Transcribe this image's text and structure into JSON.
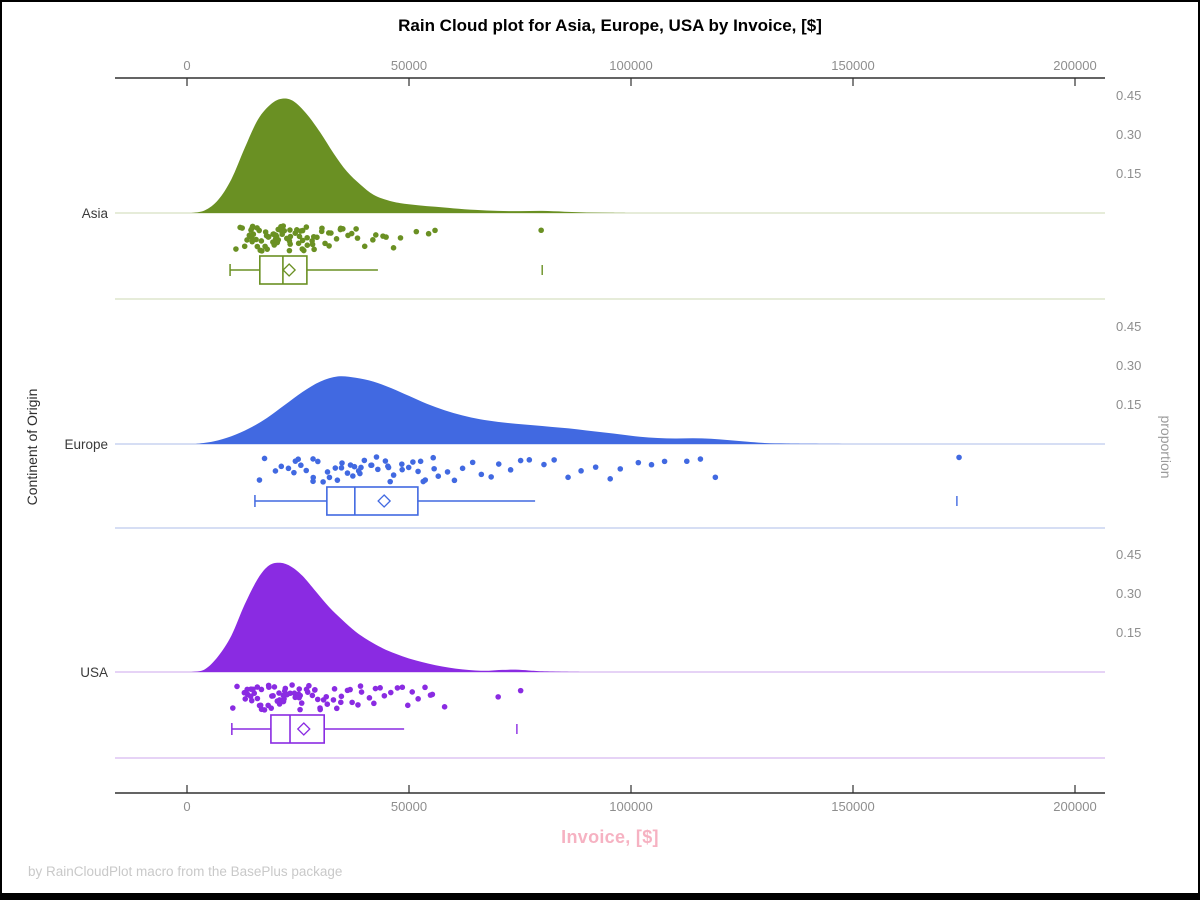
{
  "chart_data": {
    "type": "raincloud",
    "title": "Rain Cloud plot for Asia, Europe, USA by Invoice, [$]",
    "footer": "by RainCloudPlot macro from the BasePlus package",
    "x_axis": {
      "label": "Invoice, [$]",
      "label_color": "#f6b2c2",
      "ticks": [
        0,
        50000,
        100000,
        150000,
        200000
      ],
      "min": -16200,
      "max": 206700,
      "axis_position": "top and bottom"
    },
    "y_axis_left": {
      "label": "Continent of Origin",
      "categories": [
        "Asia",
        "Europe",
        "USA"
      ]
    },
    "y_axis_right": {
      "label": "proportion",
      "tick_labels": [
        "0.15",
        "0.30",
        "0.45"
      ],
      "tick_values": [
        0.15,
        0.3,
        0.45
      ]
    },
    "style_colors": {
      "axis_line": "#303030",
      "tick_text": "#8e8e8e",
      "category_text": "#3a3a3a",
      "footer_text": "#c9c9c9"
    },
    "groups": [
      {
        "name": "Asia",
        "color": "#6a9023",
        "light_color": "#d8e0c2",
        "density": [
          [
            1000,
            0
          ],
          [
            4000,
            0.01
          ],
          [
            7000,
            0.05
          ],
          [
            10000,
            0.13
          ],
          [
            13000,
            0.25
          ],
          [
            16000,
            0.36
          ],
          [
            19000,
            0.42
          ],
          [
            21500,
            0.44
          ],
          [
            24000,
            0.43
          ],
          [
            27000,
            0.38
          ],
          [
            30000,
            0.31
          ],
          [
            33000,
            0.23
          ],
          [
            36000,
            0.16
          ],
          [
            39000,
            0.11
          ],
          [
            42000,
            0.07
          ],
          [
            45000,
            0.05
          ],
          [
            48000,
            0.038
          ],
          [
            52000,
            0.03
          ],
          [
            56000,
            0.024
          ],
          [
            60000,
            0.018
          ],
          [
            65000,
            0.012
          ],
          [
            70000,
            0.008
          ],
          [
            75000,
            0.007
          ],
          [
            80000,
            0.008
          ],
          [
            85000,
            0.005
          ],
          [
            90000,
            0.002
          ],
          [
            95000,
            0.001
          ],
          [
            100000,
            0
          ]
        ],
        "box": {
          "low": 9700,
          "q1": 16400,
          "median": 21600,
          "mean": 23000,
          "q3": 27000,
          "high": 43000,
          "outliers": [
            80000
          ]
        },
        "rain": [
          11200,
          12500,
          13100,
          13800,
          14200,
          14600,
          15000,
          15300,
          15700,
          16100,
          16400,
          16800,
          17200,
          17500,
          17900,
          18200,
          18600,
          19000,
          19300,
          19700,
          20100,
          20400,
          20800,
          21200,
          21500,
          21900,
          22300,
          22700,
          23100,
          23500,
          23900,
          24300,
          24800,
          25200,
          25700,
          26100,
          26600,
          27100,
          27700,
          28300,
          28900,
          29500,
          30200,
          31000,
          31800,
          32700,
          33600,
          34600,
          35700,
          37000,
          38400,
          40000,
          41800,
          43800,
          46000,
          48500,
          51300,
          54500,
          56500,
          80200,
          12800,
          13500,
          14400,
          15100,
          15900,
          16600,
          17300,
          18000,
          18800,
          19500,
          20300,
          21000,
          21700,
          22500,
          23300,
          24100,
          25000,
          25900,
          26800,
          27900,
          29000,
          30500,
          32200,
          34000,
          36500,
          39000,
          42500,
          45000
        ]
      },
      {
        "name": "Europe",
        "color": "#4169e1",
        "light_color": "#bdc9ee",
        "density": [
          [
            2000,
            0
          ],
          [
            6000,
            0.01
          ],
          [
            10000,
            0.03
          ],
          [
            14000,
            0.06
          ],
          [
            18000,
            0.1
          ],
          [
            22000,
            0.15
          ],
          [
            26000,
            0.2
          ],
          [
            30000,
            0.24
          ],
          [
            34000,
            0.26
          ],
          [
            38000,
            0.255
          ],
          [
            42000,
            0.24
          ],
          [
            46000,
            0.215
          ],
          [
            50000,
            0.185
          ],
          [
            54000,
            0.155
          ],
          [
            58000,
            0.13
          ],
          [
            62000,
            0.11
          ],
          [
            66000,
            0.095
          ],
          [
            70000,
            0.085
          ],
          [
            74000,
            0.078
          ],
          [
            78000,
            0.072
          ],
          [
            82000,
            0.066
          ],
          [
            86000,
            0.06
          ],
          [
            90000,
            0.052
          ],
          [
            94000,
            0.044
          ],
          [
            98000,
            0.036
          ],
          [
            102000,
            0.028
          ],
          [
            106000,
            0.023
          ],
          [
            110000,
            0.021
          ],
          [
            114000,
            0.022
          ],
          [
            118000,
            0.02
          ],
          [
            122000,
            0.015
          ],
          [
            126000,
            0.009
          ],
          [
            130000,
            0.004
          ],
          [
            135000,
            0.002
          ],
          [
            140000,
            0.001
          ],
          [
            150000,
            0
          ]
        ],
        "box": {
          "low": 15300,
          "q1": 31500,
          "median": 37800,
          "mean": 44400,
          "q3": 52000,
          "high": 78400,
          "outliers": [
            173400
          ]
        },
        "rain": [
          16500,
          18000,
          19500,
          21000,
          22500,
          24000,
          25000,
          26000,
          27000,
          28000,
          29000,
          30000,
          31000,
          32000,
          33000,
          34000,
          35000,
          35800,
          36600,
          37400,
          38200,
          39000,
          39800,
          40600,
          41500,
          42400,
          43300,
          44200,
          45200,
          46200,
          47200,
          48300,
          49400,
          50500,
          51700,
          53000,
          54300,
          55700,
          57200,
          58800,
          60500,
          62300,
          64200,
          66200,
          68300,
          70500,
          72800,
          75200,
          77700,
          80300,
          83000,
          85800,
          88700,
          91700,
          94800,
          98000,
          101300,
          104700,
          108200,
          113000,
          116000,
          119500,
          173500,
          25500,
          28500,
          31500,
          34500,
          37800,
          41000,
          44700,
          48800,
          52500,
          56000
        ]
      },
      {
        "name": "USA",
        "color": "#8a2be2",
        "light_color": "#d7b9f0",
        "density": [
          [
            1000,
            0
          ],
          [
            4000,
            0.01
          ],
          [
            7000,
            0.06
          ],
          [
            10000,
            0.14
          ],
          [
            13000,
            0.26
          ],
          [
            16000,
            0.36
          ],
          [
            18500,
            0.41
          ],
          [
            21000,
            0.42
          ],
          [
            23500,
            0.405
          ],
          [
            26000,
            0.37
          ],
          [
            29000,
            0.31
          ],
          [
            32000,
            0.25
          ],
          [
            35000,
            0.2
          ],
          [
            38000,
            0.155
          ],
          [
            41000,
            0.12
          ],
          [
            44000,
            0.092
          ],
          [
            47000,
            0.07
          ],
          [
            50000,
            0.052
          ],
          [
            53000,
            0.038
          ],
          [
            56000,
            0.026
          ],
          [
            59000,
            0.017
          ],
          [
            62000,
            0.01
          ],
          [
            65000,
            0.006
          ],
          [
            68000,
            0.005
          ],
          [
            71000,
            0.008
          ],
          [
            74000,
            0.009
          ],
          [
            77000,
            0.006
          ],
          [
            80000,
            0.003
          ],
          [
            85000,
            0.001
          ],
          [
            90000,
            0
          ]
        ],
        "box": {
          "low": 10100,
          "q1": 18900,
          "median": 23200,
          "mean": 26300,
          "q3": 30900,
          "high": 48900,
          "outliers": [
            74300
          ]
        },
        "rain": [
          10500,
          11800,
          12700,
          13400,
          14000,
          14500,
          15000,
          15500,
          16000,
          16400,
          16900,
          17300,
          17800,
          18200,
          18700,
          19100,
          19600,
          20000,
          20500,
          20900,
          21400,
          21800,
          22300,
          22800,
          23300,
          23800,
          24300,
          24800,
          25300,
          25900,
          26500,
          27100,
          27700,
          28400,
          29100,
          29800,
          30600,
          31400,
          32200,
          33100,
          34000,
          35000,
          36000,
          37100,
          38300,
          39600,
          41000,
          42500,
          44100,
          45800,
          47700,
          49700,
          52000,
          54500,
          57500,
          70500,
          74800,
          13000,
          14200,
          15300,
          16200,
          17100,
          18000,
          18900,
          19800,
          20700,
          21600,
          22600,
          23600,
          24600,
          25600,
          26800,
          28000,
          29400,
          31000,
          32600,
          34500,
          36600,
          39000,
          41700,
          44900,
          48600,
          51000,
          53000,
          55500
        ]
      }
    ]
  }
}
